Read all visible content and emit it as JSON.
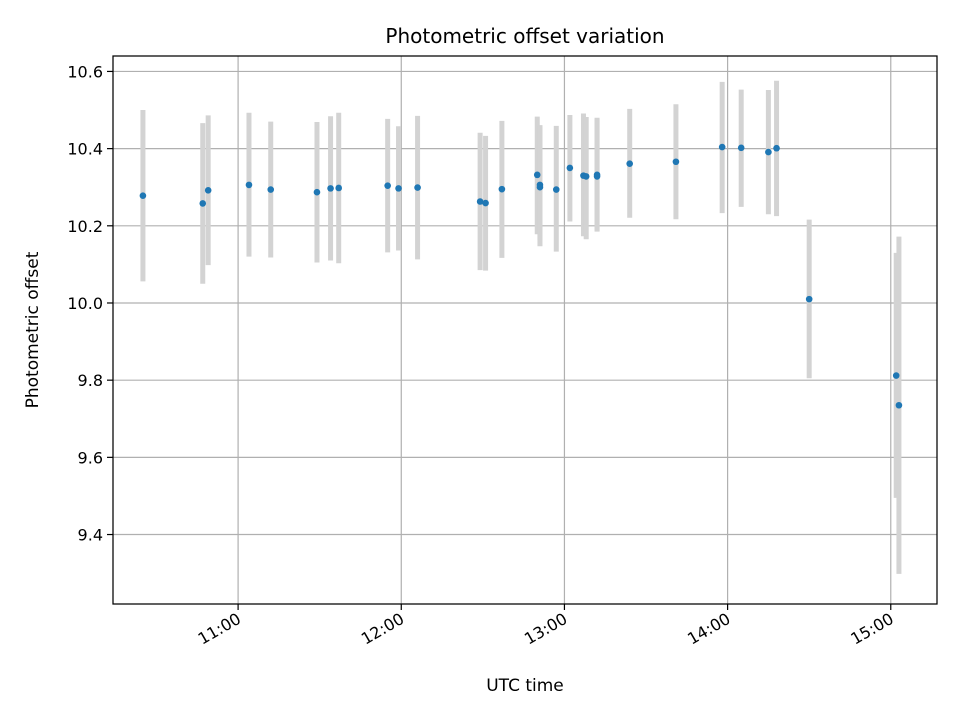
{
  "chart_data": {
    "type": "scatter",
    "title": "Photometric offset variation",
    "xlabel": "UTC time",
    "ylabel": "Photometric offset",
    "xlim": [
      "10:14",
      "15:17"
    ],
    "ylim": [
      9.22,
      10.64
    ],
    "grid": true,
    "x_ticks": [
      "11:00",
      "12:00",
      "13:00",
      "14:00",
      "15:00"
    ],
    "y_ticks": [
      9.4,
      9.6,
      9.8,
      10.0,
      10.2,
      10.4,
      10.6
    ],
    "y_tick_labels": [
      "9.4",
      "9.6",
      "9.8",
      "10.0",
      "10.2",
      "10.4",
      "10.6"
    ],
    "colors": {
      "points": "#1f77b4",
      "error_bars": "#d3d3d3",
      "grid": "#b0b0b0"
    },
    "series": [
      {
        "points": [
          {
            "x": "10:25",
            "y": 10.278,
            "ylo": 10.056,
            "yhi": 10.5
          },
          {
            "x": "10:47",
            "y": 10.258,
            "ylo": 10.05,
            "yhi": 10.466
          },
          {
            "x": "10:49",
            "y": 10.292,
            "ylo": 10.098,
            "yhi": 10.486
          },
          {
            "x": "11:04",
            "y": 10.306,
            "ylo": 10.12,
            "yhi": 10.493
          },
          {
            "x": "11:12",
            "y": 10.294,
            "ylo": 10.118,
            "yhi": 10.47
          },
          {
            "x": "11:29",
            "y": 10.287,
            "ylo": 10.105,
            "yhi": 10.469
          },
          {
            "x": "11:34",
            "y": 10.297,
            "ylo": 10.11,
            "yhi": 10.484
          },
          {
            "x": "11:37",
            "y": 10.298,
            "ylo": 10.103,
            "yhi": 10.493
          },
          {
            "x": "11:55",
            "y": 10.304,
            "ylo": 10.131,
            "yhi": 10.477
          },
          {
            "x": "11:59",
            "y": 10.297,
            "ylo": 10.136,
            "yhi": 10.458
          },
          {
            "x": "12:06",
            "y": 10.299,
            "ylo": 10.113,
            "yhi": 10.485
          },
          {
            "x": "12:29",
            "y": 10.263,
            "ylo": 10.085,
            "yhi": 10.441
          },
          {
            "x": "12:31",
            "y": 10.259,
            "ylo": 10.084,
            "yhi": 10.433
          },
          {
            "x": "12:37",
            "y": 10.295,
            "ylo": 10.117,
            "yhi": 10.472
          },
          {
            "x": "12:50",
            "y": 10.332,
            "ylo": 10.178,
            "yhi": 10.483
          },
          {
            "x": "12:51",
            "y": 10.306,
            "ylo": 10.163,
            "yhi": 10.461
          },
          {
            "x": "12:51",
            "y": 10.3,
            "ylo": 10.147,
            "yhi": 10.458
          },
          {
            "x": "12:57",
            "y": 10.294,
            "ylo": 10.133,
            "yhi": 10.459
          },
          {
            "x": "13:02",
            "y": 10.35,
            "ylo": 10.211,
            "yhi": 10.487
          },
          {
            "x": "13:07",
            "y": 10.33,
            "ylo": 10.173,
            "yhi": 10.491
          },
          {
            "x": "13:08",
            "y": 10.328,
            "ylo": 10.165,
            "yhi": 10.482
          },
          {
            "x": "13:12",
            "y": 10.332,
            "ylo": 10.187,
            "yhi": 10.48
          },
          {
            "x": "13:12",
            "y": 10.328,
            "ylo": 10.185,
            "yhi": 10.477
          },
          {
            "x": "13:24",
            "y": 10.361,
            "ylo": 10.221,
            "yhi": 10.503
          },
          {
            "x": "13:41",
            "y": 10.366,
            "ylo": 10.217,
            "yhi": 10.515
          },
          {
            "x": "13:58",
            "y": 10.404,
            "ylo": 10.233,
            "yhi": 10.573
          },
          {
            "x": "14:05",
            "y": 10.402,
            "ylo": 10.249,
            "yhi": 10.553
          },
          {
            "x": "14:15",
            "y": 10.391,
            "ylo": 10.23,
            "yhi": 10.552
          },
          {
            "x": "14:18",
            "y": 10.401,
            "ylo": 10.225,
            "yhi": 10.576
          },
          {
            "x": "14:30",
            "y": 10.01,
            "ylo": 9.805,
            "yhi": 10.216
          },
          {
            "x": "15:02",
            "y": 9.812,
            "ylo": 9.495,
            "yhi": 10.13
          },
          {
            "x": "15:03",
            "y": 9.735,
            "ylo": 9.298,
            "yhi": 10.172
          }
        ]
      }
    ]
  }
}
